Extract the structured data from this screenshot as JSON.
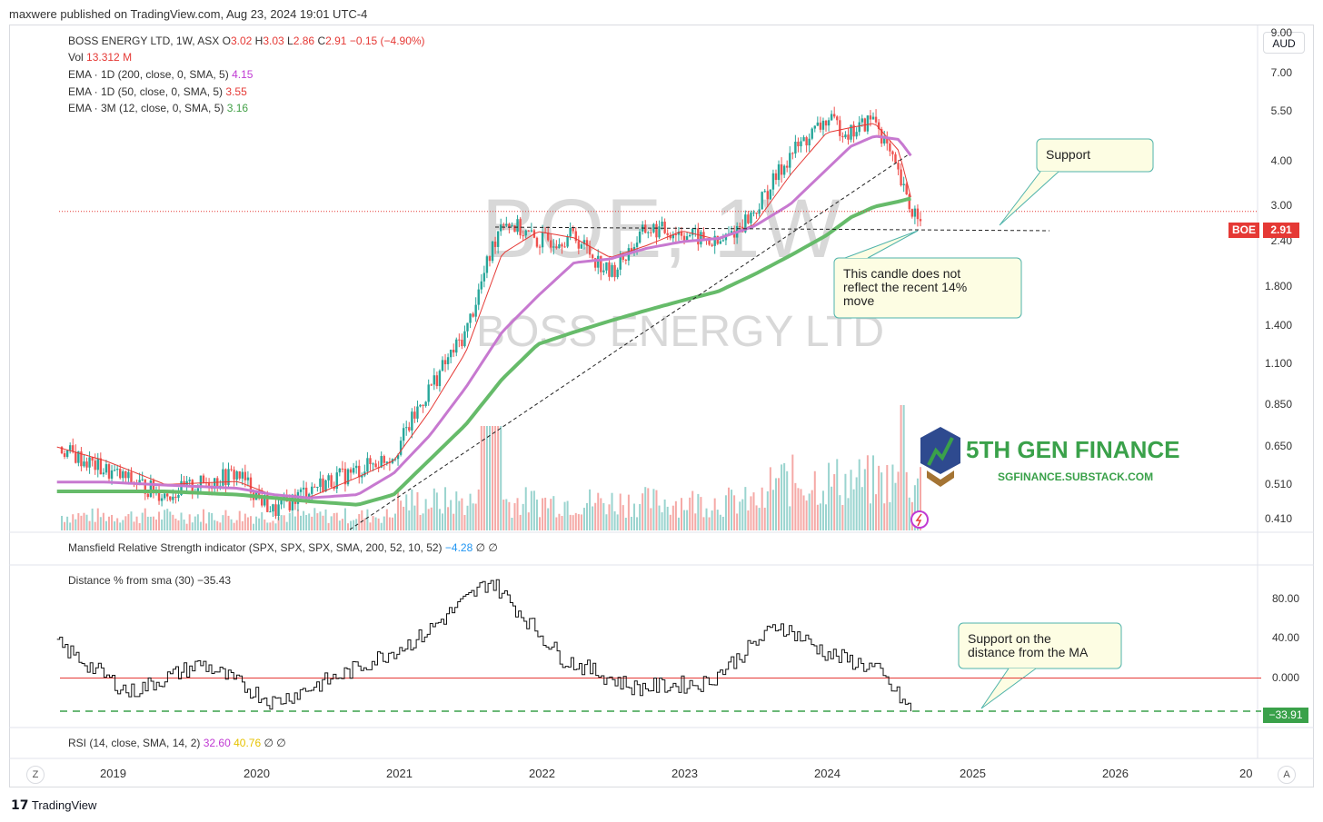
{
  "header": {
    "published": "maxwere published on TradingView.com, Aug 23, 2024 19:01 UTC-4"
  },
  "legend": {
    "symbol": "BOSS ENERGY LTD, 1W, ASX",
    "o_label": "O",
    "o": "3.02",
    "h_label": "H",
    "h": "3.03",
    "l_label": "L",
    "l": "2.86",
    "c_label": "C",
    "c": "2.91",
    "change": "−0.15 (−4.90%)",
    "vol_label": "Vol",
    "vol": "13.312 M",
    "ema200_label": "EMA · 1D (200, close, 0, SMA, 5)",
    "ema200": "4.15",
    "ema50_label": "EMA · 1D (50, close, 0, SMA, 5)",
    "ema50": "3.55",
    "ema12_label": "EMA · 3M (12, close, 0, SMA, 5)",
    "ema12": "3.16"
  },
  "watermark": {
    "ticker": "BOE, 1W",
    "name": "BOSS ENERGY LTD"
  },
  "price_axis": {
    "currency": "AUD",
    "ticks": [
      "9.00",
      "7.00",
      "5.50",
      "4.00",
      "3.00",
      "2.40",
      "1.800",
      "1.400",
      "1.100",
      "0.850",
      "0.650",
      "0.510",
      "0.410"
    ],
    "last_symbol": "BOE",
    "last_price": "2.91"
  },
  "annotations": {
    "support": "Support",
    "candle_note_1": "This candle does not",
    "candle_note_2": "reflect the recent 14%",
    "candle_note_3": "move",
    "support_ma_1": "Support on the",
    "support_ma_2": "distance from the MA"
  },
  "logo": {
    "title": "5TH GEN FINANCE",
    "subtitle": "SGFINANCE.SUBSTACK.COM"
  },
  "mansfield": {
    "label": "Mansfield Relative Strength indicator (SPX, SPX, SPX, SMA, 200, 52, 10, 52)",
    "value": "−4.28",
    "extra": "∅  ∅"
  },
  "distance": {
    "label": "Distance % from sma (30)",
    "value": "−35.43",
    "ticks": [
      "80.00",
      "40.00",
      "0.000"
    ],
    "current": "−33.91"
  },
  "rsi": {
    "label": "RSI (14, close, SMA, 14, 2)",
    "value1": "32.60",
    "value2": "40.76",
    "extra": "∅  ∅"
  },
  "time_axis": {
    "years": [
      "2019",
      "2020",
      "2021",
      "2022",
      "2023",
      "2024",
      "2025",
      "2026",
      "20"
    ],
    "left_btn": "Z",
    "right_btn": "A"
  },
  "footer": {
    "brand": "TradingView"
  },
  "colors": {
    "up": "#26a69a",
    "down": "#ef5350",
    "ema200": "#c779d0",
    "ema50": "#e53935",
    "ema12": "#66bb6a",
    "callout_bg": "#fdfde3",
    "callout_border": "#4fb3ab"
  },
  "chart_data": [
    {
      "type": "line",
      "title": "BOSS ENERGY LTD, 1W, ASX",
      "x": [
        "2018-09",
        "2019-01",
        "2019-06",
        "2019-12",
        "2020-03",
        "2020-06",
        "2020-10",
        "2021-01",
        "2021-04",
        "2021-07",
        "2021-10",
        "2022-01",
        "2022-04",
        "2022-07",
        "2022-10",
        "2023-01",
        "2023-04",
        "2023-07",
        "2023-10",
        "2024-01",
        "2024-03",
        "2024-05",
        "2024-07",
        "2024-08"
      ],
      "series": [
        {
          "name": "close",
          "values": [
            0.65,
            0.56,
            0.48,
            0.55,
            0.43,
            0.5,
            0.56,
            0.62,
            0.95,
            1.35,
            2.8,
            2.4,
            2.5,
            1.95,
            2.6,
            2.55,
            2.35,
            2.9,
            4.2,
            5.2,
            4.8,
            5.3,
            3.6,
            2.91
          ]
        },
        {
          "name": "EMA · 1D (200, close, 0, SMA, 5)",
          "values": [
            0.52,
            0.52,
            0.51,
            0.5,
            0.48,
            0.47,
            0.48,
            0.55,
            0.7,
            0.95,
            1.35,
            1.7,
            2.1,
            2.15,
            2.3,
            2.4,
            2.45,
            2.65,
            3.05,
            3.8,
            4.4,
            4.7,
            4.6,
            4.15
          ]
        },
        {
          "name": "EMA · 3M (12, close, 0, SMA, 5)",
          "values": [
            0.49,
            0.49,
            0.49,
            0.48,
            0.47,
            0.46,
            0.45,
            0.48,
            0.6,
            0.75,
            1.0,
            1.25,
            1.35,
            1.45,
            1.55,
            1.65,
            1.75,
            1.95,
            2.2,
            2.5,
            2.8,
            3.0,
            3.1,
            3.16
          ]
        }
      ],
      "ylim": [
        0.38,
        9.5
      ],
      "yscale": "log"
    },
    {
      "type": "line",
      "title": "Distance % from sma (30)",
      "x": [
        "2018-09",
        "2019-03",
        "2019-09",
        "2020-03",
        "2020-09",
        "2021-03",
        "2021-09",
        "2022-03",
        "2022-09",
        "2023-03",
        "2023-09",
        "2024-01",
        "2024-05",
        "2024-08"
      ],
      "series": [
        {
          "name": "Distance % from sma (30)",
          "values": [
            35,
            -15,
            15,
            -25,
            5,
            40,
            100,
            20,
            -10,
            -5,
            55,
            25,
            10,
            -33.91
          ]
        }
      ],
      "ylim": [
        -45,
        110
      ]
    }
  ]
}
